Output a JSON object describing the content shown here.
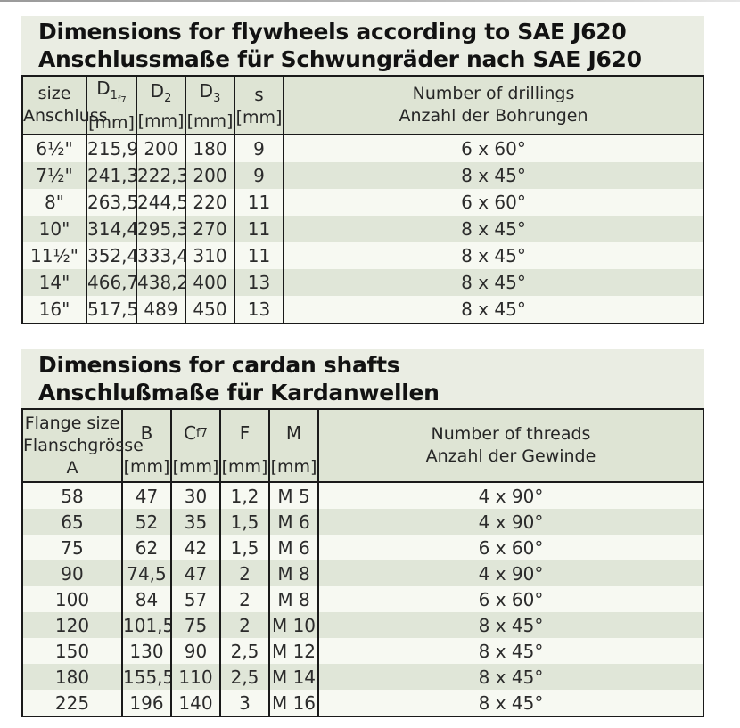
{
  "flywheel_section": {
    "title_en": "Dimensions for flywheels according to SAE J620",
    "title_de": "Anschlussmaße für Schwungräder nach SAE J620",
    "headers": {
      "size": {
        "line1": "size",
        "line2": "Anschluss"
      },
      "d1": {
        "symbol": "D",
        "sub": "1",
        "subsub": "f7",
        "unit": "[mm]"
      },
      "d2": {
        "symbol": "D",
        "sub": "2",
        "unit": "[mm]"
      },
      "d3": {
        "symbol": "D",
        "sub": "3",
        "unit": "[mm]"
      },
      "s": {
        "symbol": "s",
        "unit": "[mm]"
      },
      "drillings": {
        "line1": "Number of drillings",
        "line2": "Anzahl der Bohrungen"
      }
    },
    "rows": [
      [
        "6½\"",
        "215,9",
        "200",
        "180",
        "9",
        "6 x 60°"
      ],
      [
        "7½\"",
        "241,3",
        "222,3",
        "200",
        "9",
        "8 x 45°"
      ],
      [
        "8\"",
        "263,5",
        "244,5",
        "220",
        "11",
        "6 x 60°"
      ],
      [
        "10\"",
        "314,4",
        "295,3",
        "270",
        "11",
        "8 x 45°"
      ],
      [
        "11½\"",
        "352,4",
        "333,4",
        "310",
        "11",
        "8 x 45°"
      ],
      [
        "14\"",
        "466,7",
        "438,2",
        "400",
        "13",
        "8 x 45°"
      ],
      [
        "16\"",
        "517,5",
        "489",
        "450",
        "13",
        "8 x 45°"
      ]
    ]
  },
  "cardan_section": {
    "title_en": "Dimensions for cardan shafts",
    "title_de": "Anschlußmaße für Kardanwellen",
    "headers": {
      "flange": {
        "line1": "Flange size",
        "line2": "Flanschgrösse",
        "line3": "A"
      },
      "b": {
        "symbol": "B",
        "unit": "[mm]"
      },
      "c": {
        "symbol": "C",
        "sub": "f7",
        "unit": "[mm]"
      },
      "f": {
        "symbol": "F",
        "unit": "[mm]"
      },
      "m": {
        "symbol": "M",
        "unit": "[mm]"
      },
      "threads": {
        "line1": "Number of threads",
        "line2": "Anzahl der Gewinde"
      }
    },
    "rows": [
      [
        "58",
        "47",
        "30",
        "1,2",
        "M 5",
        "4 x 90°"
      ],
      [
        "65",
        "52",
        "35",
        "1,5",
        "M 6",
        "4 x 90°"
      ],
      [
        "75",
        "62",
        "42",
        "1,5",
        "M 6",
        "6 x 60°"
      ],
      [
        "90",
        "74,5",
        "47",
        "2",
        "M 8",
        "4 x 90°"
      ],
      [
        "100",
        "84",
        "57",
        "2",
        "M 8",
        "6 x 60°"
      ],
      [
        "120",
        "101,5",
        "75",
        "2",
        "M 10",
        "8 x 45°"
      ],
      [
        "150",
        "130",
        "90",
        "2,5",
        "M 12",
        "8 x 45°"
      ],
      [
        "180",
        "155,5",
        "110",
        "2,5",
        "M 14",
        "8 x 45°"
      ],
      [
        "225",
        "196",
        "140",
        "3",
        "M 16",
        "8 x 45°"
      ]
    ]
  },
  "colors": {
    "title_background": "#eaede3",
    "header_background": "#dee4d4",
    "row_stripe_green": "#e0e6d8",
    "row_stripe_white": "#f7f9f2",
    "border": "#1a1a1a",
    "text": "#2a2a2a"
  }
}
